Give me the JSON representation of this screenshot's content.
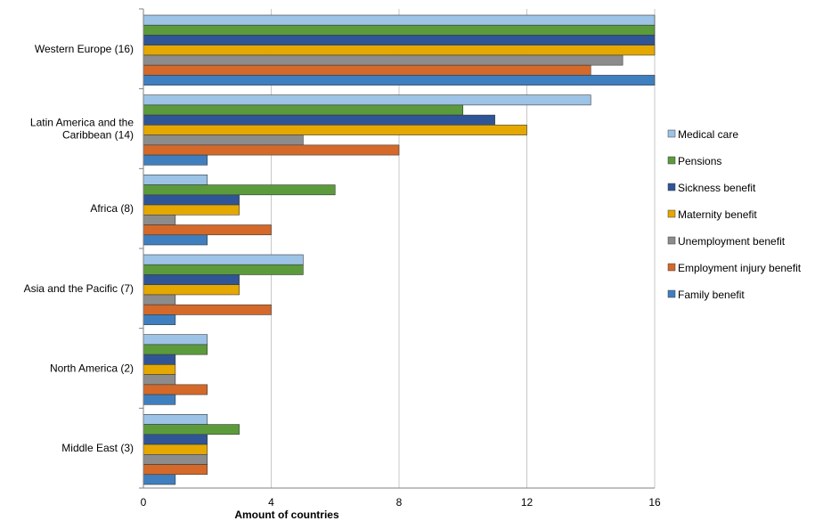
{
  "chart_data": {
    "type": "bar",
    "orientation": "horizontal",
    "title": "",
    "xlabel": "Amount of countries",
    "ylabel": "",
    "xlim": [
      0,
      16
    ],
    "x_ticks": [
      "0",
      "4",
      "8",
      "12",
      "16"
    ],
    "grid": "vertical",
    "legend_position": "right",
    "categories": [
      "Western Europe (16)",
      "Latin America and the Caribbean (14)",
      "Africa (8)",
      "Asia and the Pacific (7)",
      "North America (2)",
      "Middle East (3)"
    ],
    "series": [
      {
        "name": "Medical care",
        "color": "#9dc3e6",
        "values": [
          16,
          14,
          2,
          5,
          2,
          2
        ]
      },
      {
        "name": "Pensions",
        "color": "#5b9b3c",
        "values": [
          16,
          10,
          6,
          5,
          2,
          3
        ]
      },
      {
        "name": "Sickness benefit",
        "color": "#2f5597",
        "values": [
          16,
          11,
          3,
          3,
          1,
          2
        ]
      },
      {
        "name": "Maternity benefit",
        "color": "#e5a800",
        "values": [
          16,
          12,
          3,
          3,
          1,
          2
        ]
      },
      {
        "name": "Unemployment benefit",
        "color": "#8c8c8c",
        "values": [
          15,
          5,
          1,
          1,
          1,
          2
        ]
      },
      {
        "name": "Employment injury benefit",
        "color": "#d4692a",
        "values": [
          14,
          8,
          4,
          4,
          2,
          2
        ]
      },
      {
        "name": "Family benefit",
        "color": "#3f7fbf",
        "values": [
          16,
          2,
          2,
          1,
          1,
          1
        ]
      }
    ]
  }
}
